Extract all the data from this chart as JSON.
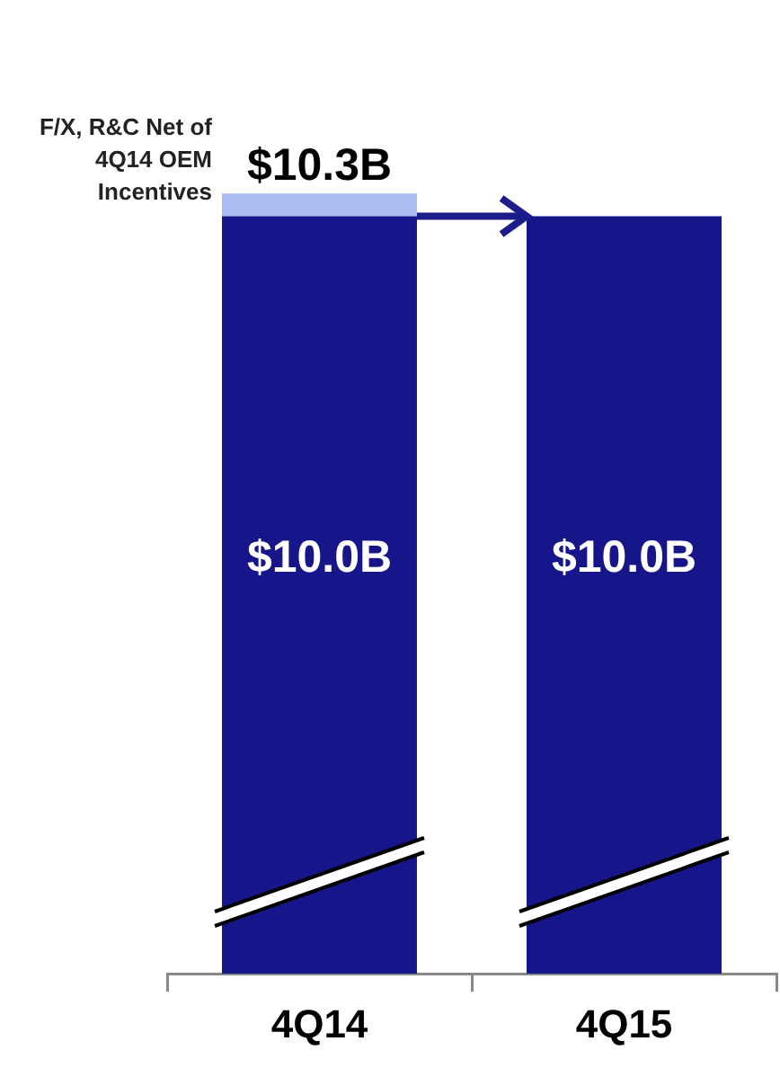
{
  "chart_data": {
    "type": "bar",
    "stacked": true,
    "categories": [
      "4Q14",
      "4Q15"
    ],
    "series": [
      {
        "color": "#16168a",
        "values": [
          10.0,
          10.0
        ],
        "value_labels": [
          "$10.0B",
          "$10.0B"
        ]
      },
      {
        "color": "#a9bdf2",
        "values": [
          0.3,
          null
        ]
      }
    ],
    "totals": [
      "$10.3B",
      null
    ],
    "tick_labels": "x",
    "grid": false,
    "legend": false,
    "annotations": [
      "F/X, R&C Net of 4Q14 OEM Incentives"
    ]
  }
}
